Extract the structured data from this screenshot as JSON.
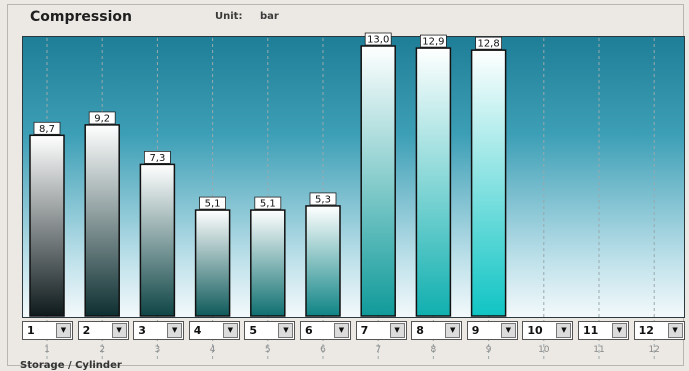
{
  "title": "Compression",
  "unit": {
    "label": "Unit:",
    "value": "bar"
  },
  "x_axis_title": "Storage / Cylinder",
  "selectors": [
    "1",
    "2",
    "3",
    "4",
    "5",
    "6",
    "7",
    "8",
    "9",
    "10",
    "11",
    "12"
  ],
  "icons": {
    "dropdown": "chevron-down-icon"
  },
  "colors": {
    "plot_top": "#1f7e97",
    "plot_bottom": "#f3f9fb",
    "bar_bottom_dark": "#0e1a1c",
    "bar_bottom_teal": "#10c4c4"
  },
  "chart_data": {
    "type": "bar",
    "categories": [
      "1",
      "2",
      "3",
      "4",
      "5",
      "6",
      "7",
      "8",
      "9",
      "10",
      "11",
      "12"
    ],
    "values": [
      8.7,
      9.2,
      7.3,
      5.1,
      5.1,
      5.3,
      13.0,
      12.9,
      12.8,
      null,
      null,
      null
    ],
    "value_labels": [
      "8,7",
      "9,2",
      "7,3",
      "5,1",
      "5,1",
      "5,3",
      "13,0",
      "12,9",
      "12,8",
      "",
      "",
      ""
    ],
    "ylim": [
      0,
      14
    ],
    "grid": "vertical dashed"
  }
}
